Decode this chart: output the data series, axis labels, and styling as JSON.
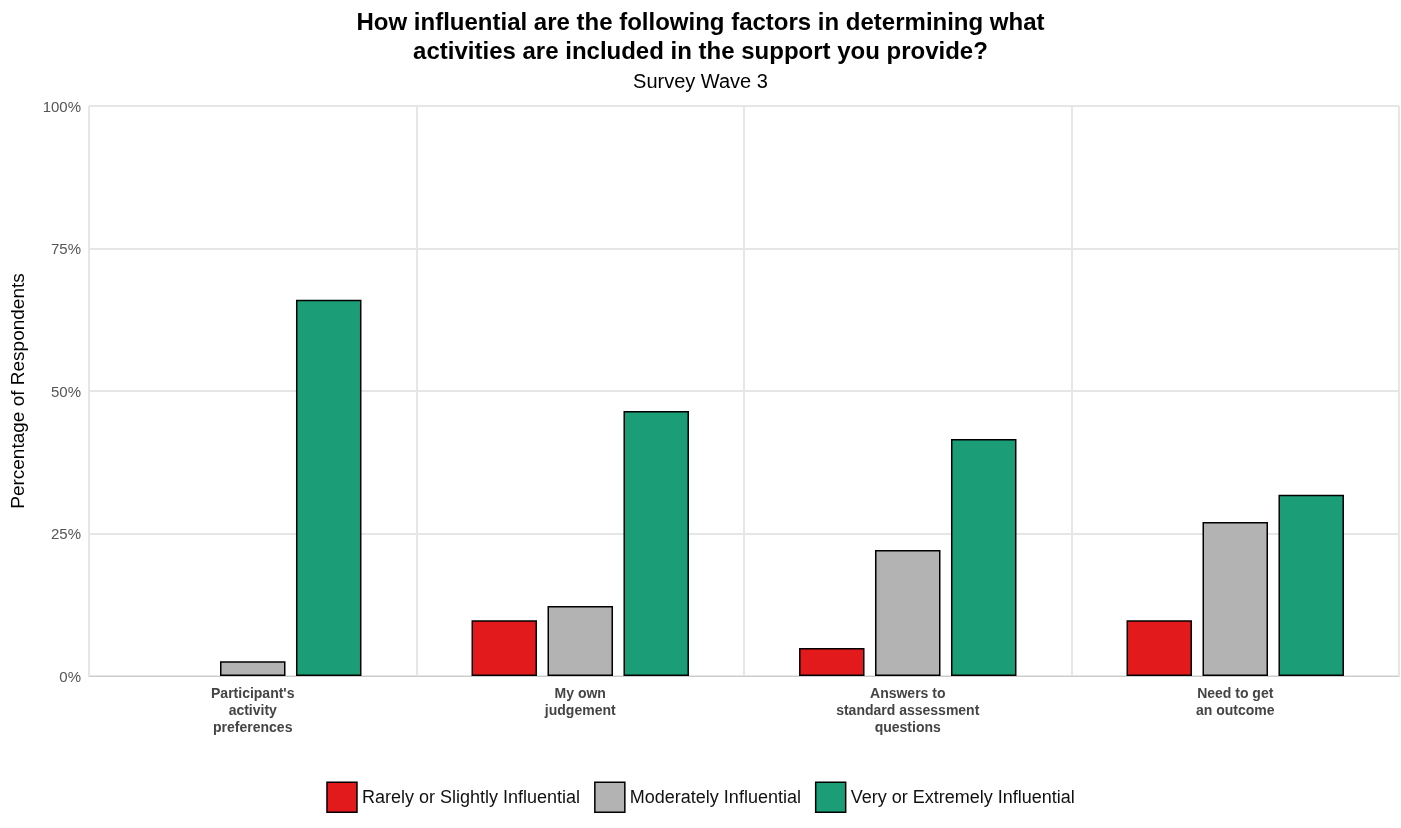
{
  "chart_data": {
    "type": "bar",
    "title": "How influential are the following factors in determining what\nactivities are included in the support you provide?",
    "subtitle": "Survey Wave 3",
    "ylabel": "Percentage of Respondents",
    "categories": [
      "Participant's\nactivity\npreferences",
      "My own\njudgement",
      "Answers to\nstandard assessment\nquestions",
      "Need to get\nan outcome"
    ],
    "series": [
      {
        "name": "Rarely or Slightly Influential",
        "color": "#e31a1c",
        "values": [
          null,
          9.8,
          4.9,
          9.8
        ]
      },
      {
        "name": "Moderately Influential",
        "color": "#b3b3b3",
        "values": [
          2.6,
          12.3,
          22.1,
          27.0
        ]
      },
      {
        "name": "Very or Extremely Influential",
        "color": "#1b9e77",
        "values": [
          66.0,
          46.5,
          41.6,
          31.8
        ]
      }
    ],
    "ylim": [
      0,
      100
    ],
    "yticks": [
      {
        "value": 0,
        "label": "0%"
      },
      {
        "value": 25,
        "label": "25%"
      },
      {
        "value": 50,
        "label": "50%"
      },
      {
        "value": 75,
        "label": "75%"
      },
      {
        "value": 100,
        "label": "100%"
      }
    ],
    "grid": true,
    "legend": "bottom"
  }
}
